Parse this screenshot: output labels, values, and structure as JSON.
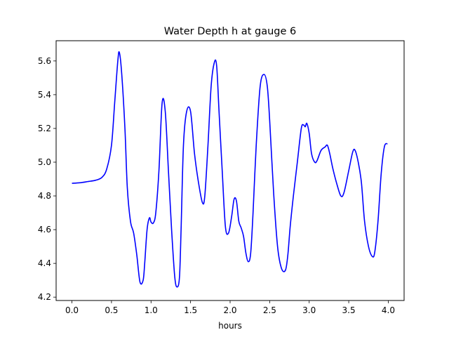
{
  "chart_data": {
    "type": "line",
    "title": "Water Depth h at gauge 6",
    "xlabel": "hours",
    "ylabel": "",
    "xlim": [
      -0.2,
      4.2
    ],
    "ylim": [
      4.18,
      5.72
    ],
    "xticks": [
      0.0,
      0.5,
      1.0,
      1.5,
      2.0,
      2.5,
      3.0,
      3.5,
      4.0
    ],
    "xtick_labels": [
      "0.0",
      "0.5",
      "1.0",
      "1.5",
      "2.0",
      "2.5",
      "3.0",
      "3.5",
      "4.0"
    ],
    "yticks": [
      4.2,
      4.4,
      4.6,
      4.8,
      5.0,
      5.2,
      5.4,
      5.6
    ],
    "ytick_labels": [
      "4.2",
      "4.4",
      "4.6",
      "4.8",
      "5.0",
      "5.2",
      "5.4",
      "5.6"
    ],
    "grid": false,
    "series": [
      {
        "color": "#0000ff",
        "x": [
          0.0,
          0.1,
          0.2,
          0.3,
          0.38,
          0.44,
          0.5,
          0.54,
          0.58,
          0.6,
          0.63,
          0.67,
          0.7,
          0.74,
          0.78,
          0.82,
          0.86,
          0.9,
          0.92,
          0.95,
          0.98,
          1.0,
          1.03,
          1.06,
          1.1,
          1.14,
          1.18,
          1.22,
          1.26,
          1.3,
          1.33,
          1.36,
          1.38,
          1.41,
          1.45,
          1.5,
          1.55,
          1.6,
          1.65,
          1.68,
          1.72,
          1.76,
          1.8,
          1.83,
          1.86,
          1.9,
          1.94,
          1.98,
          2.02,
          2.05,
          2.08,
          2.11,
          2.14,
          2.17,
          2.2,
          2.23,
          2.26,
          2.29,
          2.33,
          2.38,
          2.43,
          2.47,
          2.5,
          2.55,
          2.6,
          2.65,
          2.7,
          2.73,
          2.76,
          2.8,
          2.85,
          2.9,
          2.93,
          2.95,
          2.97,
          3.0,
          3.03,
          3.07,
          3.1,
          3.15,
          3.2,
          3.23,
          3.26,
          3.3,
          3.35,
          3.4,
          3.44,
          3.5,
          3.55,
          3.58,
          3.62,
          3.66,
          3.7,
          3.75,
          3.8,
          3.83,
          3.87,
          3.91,
          3.95,
          3.99
        ],
        "y": [
          4.875,
          4.878,
          4.885,
          4.893,
          4.91,
          4.96,
          5.1,
          5.35,
          5.6,
          5.65,
          5.52,
          5.2,
          4.85,
          4.65,
          4.58,
          4.45,
          4.29,
          4.3,
          4.4,
          4.6,
          4.67,
          4.645,
          4.64,
          4.7,
          4.95,
          5.35,
          5.3,
          4.95,
          4.6,
          4.32,
          4.26,
          4.32,
          4.6,
          5.1,
          5.3,
          5.3,
          5.05,
          4.88,
          4.76,
          4.8,
          5.1,
          5.45,
          5.59,
          5.57,
          5.3,
          4.95,
          4.62,
          4.58,
          4.68,
          4.78,
          4.77,
          4.65,
          4.61,
          4.56,
          4.46,
          4.41,
          4.46,
          4.7,
          5.1,
          5.45,
          5.52,
          5.45,
          5.25,
          4.82,
          4.5,
          4.37,
          4.36,
          4.45,
          4.62,
          4.8,
          5.0,
          5.2,
          5.22,
          5.21,
          5.23,
          5.17,
          5.05,
          5.0,
          5.01,
          5.07,
          5.09,
          5.1,
          5.05,
          4.96,
          4.87,
          4.8,
          4.82,
          4.95,
          5.06,
          5.07,
          5.0,
          4.88,
          4.65,
          4.5,
          4.44,
          4.47,
          4.65,
          4.93,
          5.09,
          5.11
        ]
      }
    ]
  }
}
